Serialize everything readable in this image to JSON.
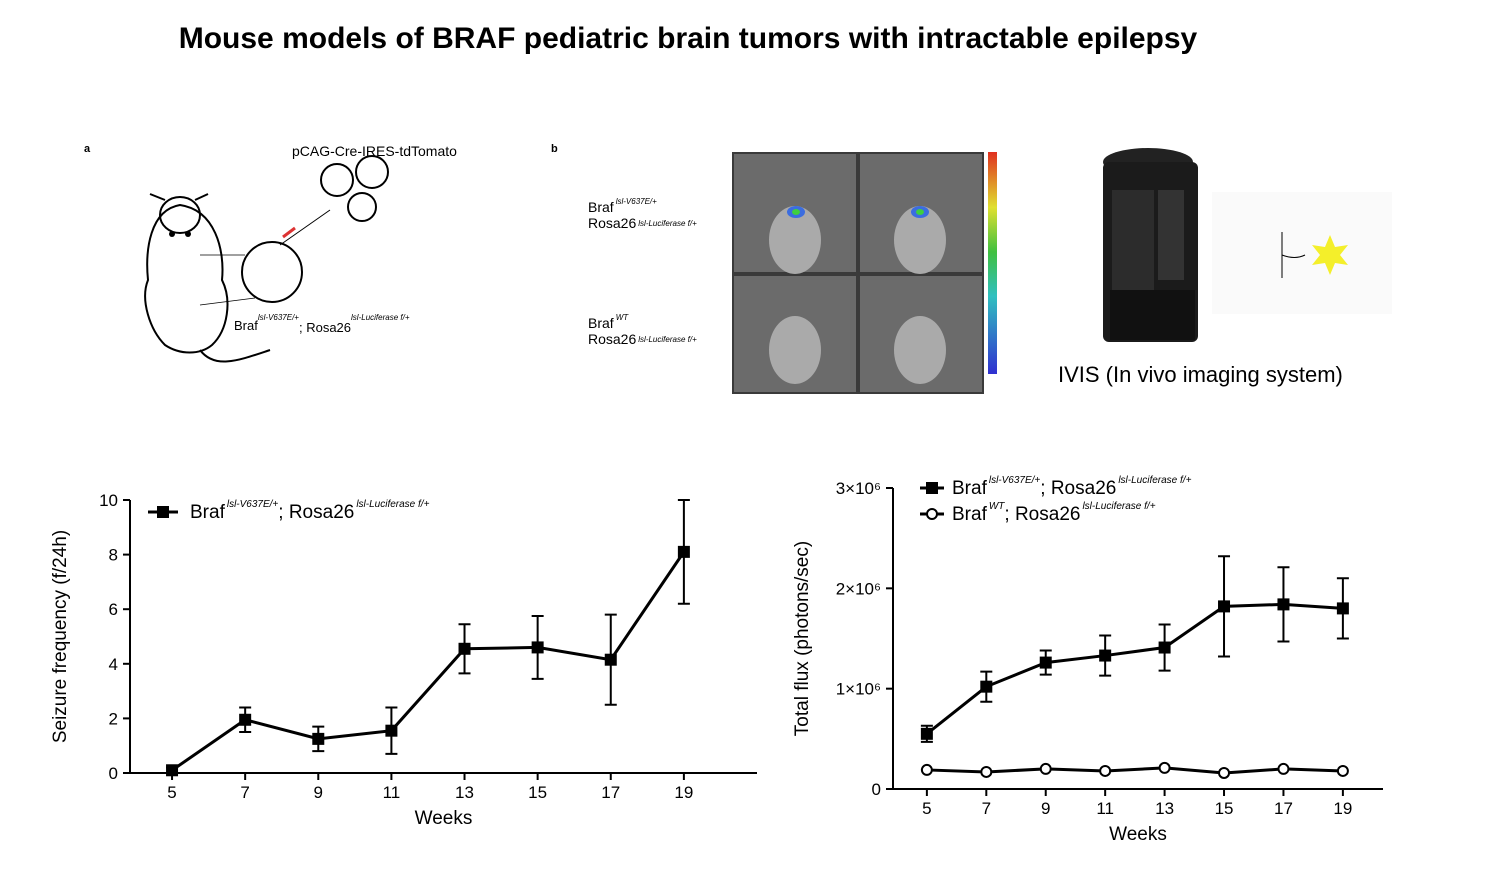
{
  "title": "Mouse models of BRAF pediatric brain tumors with intractable epilepsy",
  "panel_a": {
    "label": "a",
    "plasmid": "pCAG-Cre-IRES-tdTomato",
    "genotype": [
      "Braf",
      "lsl-V637E/+",
      "; Rosa26",
      "lsl-Luciferase f/+"
    ]
  },
  "panel_b": {
    "label": "b",
    "genotypes": [
      [
        {
          "text": "Braf",
          "sup": "lsl-V637E/+"
        },
        {
          "text": "Rosa26",
          "sup": "lsl-Luciferase f/+"
        }
      ],
      [
        {
          "text": "Braf",
          "sup": "WT"
        },
        {
          "text": "Rosa26",
          "sup": "lsl-Luciferase f/+"
        }
      ]
    ],
    "device": "IVIS (In vivo imaging system)"
  },
  "chart_data": [
    {
      "type": "line",
      "x": [
        5,
        7,
        9,
        11,
        13,
        15,
        17,
        19
      ],
      "xlim": [
        3.85,
        21
      ],
      "xticks": [
        5,
        7,
        9,
        11,
        13,
        15,
        17,
        19
      ],
      "ylim": [
        0,
        10
      ],
      "yticks": [
        0,
        2,
        4,
        6,
        8,
        10
      ],
      "x_label": "Weeks",
      "y_label": "Seizure frequency (f/24h)",
      "series": [
        {
          "name": [
            "Braf",
            "lsl-V637E/+",
            "; Rosa26",
            "lsl-Luciferase f/+"
          ],
          "color": "#000000",
          "marker": "square",
          "values": [
            0.1,
            1.95,
            1.25,
            1.55,
            4.55,
            4.6,
            4.15,
            8.1
          ],
          "errors": [
            0.1,
            0.45,
            0.45,
            0.85,
            0.9,
            1.15,
            1.65,
            1.9
          ]
        }
      ]
    },
    {
      "type": "line",
      "x": [
        5,
        7,
        9,
        11,
        13,
        15,
        17,
        19
      ],
      "xlim": [
        3.86,
        20.35
      ],
      "xticks": [
        5,
        7,
        9,
        11,
        13,
        15,
        17,
        19
      ],
      "ylim": [
        0,
        3000000
      ],
      "yticks": [
        0,
        {
          "value": 1000000,
          "label": "1×10⁶"
        },
        {
          "value": 2000000,
          "label": "2×10⁶"
        },
        {
          "value": 3000000,
          "label": "3×10⁶"
        }
      ],
      "x_label": "Weeks",
      "y_label": "Total flux (photons/sec)",
      "series": [
        {
          "name": [
            "Braf",
            "lsl-V637E/+",
            "; Rosa26",
            "lsl-Luciferase f/+"
          ],
          "color": "#000000",
          "marker": "square",
          "values": [
            550000,
            1020000,
            1260000,
            1330000,
            1410000,
            1820000,
            1840000,
            1800000
          ],
          "errors": [
            80000,
            150000,
            120000,
            200000,
            230000,
            500000,
            370000,
            300000
          ]
        },
        {
          "name": [
            "Braf",
            "WT",
            "; Rosa26",
            "lsl-Luciferase f/+"
          ],
          "color": "#000000",
          "marker": "circle",
          "values": [
            190000,
            170000,
            200000,
            180000,
            210000,
            160000,
            200000,
            180000
          ]
        }
      ]
    }
  ]
}
